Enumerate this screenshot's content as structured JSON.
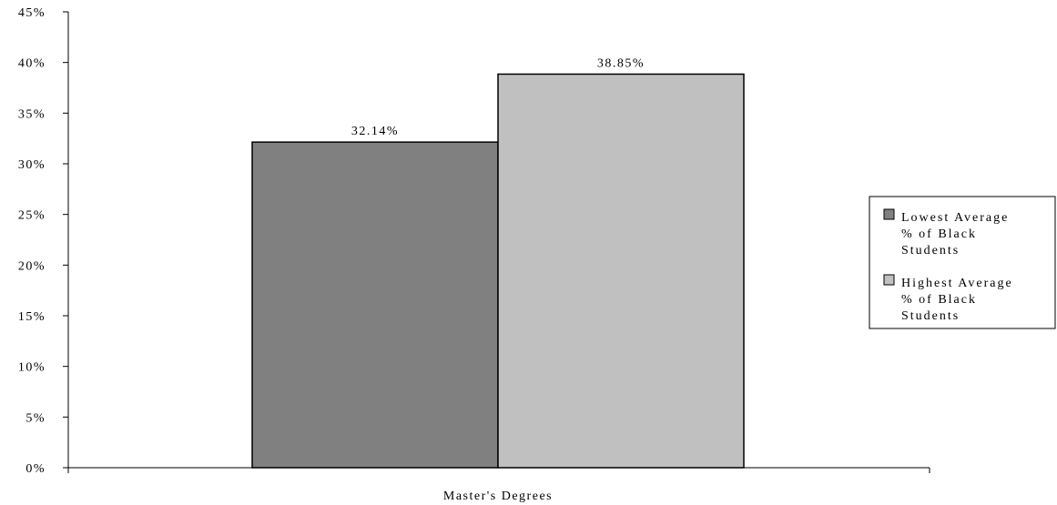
{
  "chart_data": {
    "type": "bar",
    "title": "",
    "xlabel": "",
    "ylabel": "",
    "categories": [
      "Master's Degrees"
    ],
    "series": [
      {
        "name": "Lowest Average % of Black Students",
        "legend_lines": [
          "Lowest Average",
          "% of Black",
          "Students"
        ],
        "values": [
          32.14
        ],
        "label": "32.14%",
        "color": "#808080"
      },
      {
        "name": "Highest Average % of Black Students",
        "legend_lines": [
          "Highest Average",
          "% of Black",
          "Students"
        ],
        "values": [
          38.85
        ],
        "label": "38.85%",
        "color": "#c0c0c0"
      }
    ],
    "ylim": [
      0,
      45
    ],
    "yticks": [
      0,
      5,
      10,
      15,
      20,
      25,
      30,
      35,
      40,
      45
    ],
    "ytick_labels": [
      "0%",
      "5%",
      "10%",
      "15%",
      "20%",
      "25%",
      "30%",
      "35%",
      "40%",
      "45%"
    ],
    "grid": false,
    "legend_position": "right"
  }
}
